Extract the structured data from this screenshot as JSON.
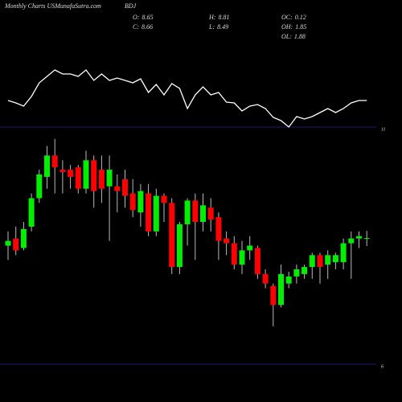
{
  "chart_data": {
    "type": "candlestick",
    "title": "Monthly Charts USMunafaSutra.com",
    "symbol": "BDJ",
    "stats": [
      {
        "label": "O:",
        "value": 8.65
      },
      {
        "label": "H:",
        "value": 8.81
      },
      {
        "label": "OC:",
        "value": 0.12
      },
      {
        "label": "C:",
        "value": 8.66
      },
      {
        "label": "L:",
        "value": 8.49
      },
      {
        "label": "OH:",
        "value": 1.85
      },
      {
        "label": "OL:",
        "value": 1.88
      }
    ],
    "up_color": "#00ee00",
    "down_color": "#ff0000",
    "ylim": [
      6,
      11
    ],
    "yticks": [
      6,
      11
    ],
    "grid": true,
    "open": [
      8.5,
      8.65,
      8.45,
      8.9,
      9.5,
      9.95,
      10.4,
      10.1,
      10.1,
      10.15,
      9.7,
      10.3,
      10.1,
      9.75,
      9.75,
      9.9,
      9.6,
      9.2,
      9.6,
      8.8,
      9.55,
      9.4,
      8.05,
      8.95,
      9.45,
      9.0,
      9.3,
      9.1,
      8.65,
      8.55,
      8.1,
      8.4,
      8.45,
      7.9,
      7.65,
      7.25,
      7.7,
      7.85,
      7.9,
      8.05,
      8.3,
      8.1,
      8.15,
      8.15,
      8.55,
      8.65,
      8.65
    ],
    "high": [
      8.8,
      8.9,
      9.0,
      9.6,
      10.1,
      10.6,
      10.75,
      10.3,
      10.2,
      10.2,
      10.5,
      10.4,
      10.4,
      10.4,
      10.0,
      10.1,
      9.9,
      9.8,
      9.8,
      9.7,
      9.6,
      9.5,
      9.0,
      9.5,
      9.6,
      9.6,
      9.5,
      9.2,
      8.8,
      8.7,
      8.6,
      8.7,
      8.5,
      8.0,
      7.7,
      8.1,
      7.95,
      8.1,
      8.1,
      8.35,
      8.35,
      8.4,
      8.35,
      8.65,
      8.8,
      8.8,
      8.81
    ],
    "low": [
      8.2,
      8.3,
      8.4,
      8.8,
      9.4,
      9.7,
      9.6,
      9.6,
      9.7,
      9.6,
      9.6,
      9.3,
      9.4,
      8.6,
      9.2,
      9.3,
      9.1,
      8.9,
      8.7,
      8.7,
      9.0,
      7.9,
      7.9,
      8.5,
      8.2,
      8.8,
      8.8,
      8.2,
      8.3,
      8.0,
      7.9,
      8.2,
      7.8,
      7.6,
      6.8,
      7.2,
      7.6,
      7.7,
      7.8,
      7.8,
      7.7,
      7.8,
      8.0,
      8.0,
      7.8,
      8.45,
      8.49
    ],
    "close": [
      8.6,
      8.4,
      8.85,
      9.5,
      10.0,
      10.4,
      10.15,
      10.05,
      9.95,
      9.7,
      10.3,
      9.65,
      9.7,
      10.1,
      9.65,
      9.55,
      9.25,
      9.65,
      8.8,
      9.55,
      9.4,
      8.05,
      8.95,
      9.45,
      9.0,
      9.35,
      9.05,
      8.6,
      8.55,
      8.1,
      8.4,
      8.5,
      7.9,
      7.7,
      7.25,
      7.9,
      7.85,
      8.0,
      8.05,
      8.3,
      8.05,
      8.3,
      8.3,
      8.55,
      8.65,
      8.7,
      8.66
    ],
    "indicator": {
      "color": "#ffffff",
      "ylim": [
        0,
        100
      ],
      "values": [
        35,
        32,
        28,
        40,
        57,
        65,
        73,
        68,
        68,
        65,
        73,
        60,
        68,
        60,
        63,
        60,
        57,
        62,
        45,
        55,
        42,
        56,
        50,
        25,
        42,
        52,
        42,
        45,
        33,
        32,
        22,
        28,
        30,
        25,
        14,
        10,
        2,
        15,
        12,
        15,
        20,
        25,
        20,
        25,
        32,
        35,
        35
      ]
    }
  }
}
